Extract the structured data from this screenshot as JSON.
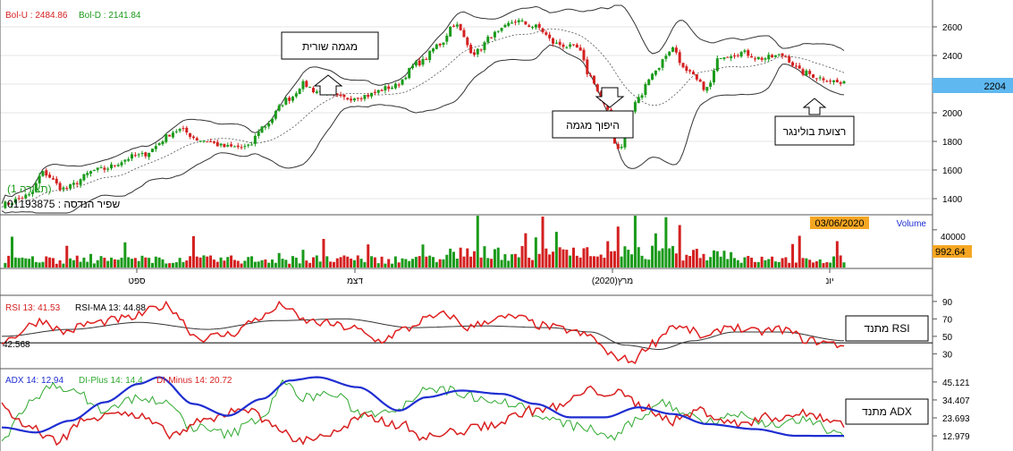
{
  "header": {
    "bol_u": "Bol-U : 2484.86",
    "bol_d": "Bol-D : 2141.84",
    "view_label": "(תצורה 1)",
    "security_line": "שפיר הנדסה : 01193875",
    "price_badge": "2204"
  },
  "annotations": {
    "uptrend": "מגמה שורית",
    "reversal": "היפוך מגמה",
    "squeeze": "רצועת בולינגר",
    "rsi_osc": "מתנד RSI",
    "adx_osc": "מתנד ADX"
  },
  "volume_panel": {
    "date_badge": "03/06/2020",
    "label": "Volume",
    "tick": "40000",
    "value_badge": "992.64"
  },
  "xaxis": {
    "labels": [
      "ספט",
      "דצמ",
      "מרץ(2020)",
      "יונ"
    ]
  },
  "rsi_panel": {
    "rsi_label": "RSI 13: 41.53",
    "rsi_ma_label": "RSI-MA 13: 44.88",
    "left_value": "42.568",
    "ticks": [
      "90",
      "70",
      "50",
      "30"
    ]
  },
  "adx_panel": {
    "adx_label": "ADX 14: 12.94",
    "di_plus_label": "DI-Plus 14: 14.4",
    "di_minus_label": "DI-Minus 14: 20.72",
    "ticks": [
      "45.121",
      "34.407",
      "23.693",
      "12.979"
    ]
  },
  "colors": {
    "up": "#1a9a1a",
    "down": "#d42020",
    "badge_orange": "#f5a623",
    "badge_blue": "#60b8f0",
    "adx": "#1f2ed1",
    "di_plus": "#2ea82e",
    "di_minus": "#d82020"
  },
  "chart_data": {
    "type": "candlestick",
    "ylim": [
      1300,
      2750
    ],
    "yticks": [
      1400,
      1600,
      1800,
      2000,
      2200,
      2400,
      2600
    ],
    "last_close": 2204,
    "bollinger": {
      "upper": 2484.86,
      "lower": 2141.84
    },
    "x_month_labels": [
      "ספט",
      "דצמ",
      "מרץ(2020)",
      "יונ"
    ],
    "price_keypoints": [
      [
        0,
        1360
      ],
      [
        8,
        1420
      ],
      [
        12,
        1580
      ],
      [
        18,
        1470
      ],
      [
        28,
        1600
      ],
      [
        40,
        1700
      ],
      [
        52,
        1880
      ],
      [
        58,
        1810
      ],
      [
        66,
        1760
      ],
      [
        72,
        1760
      ],
      [
        76,
        1900
      ],
      [
        84,
        2100
      ],
      [
        88,
        2200
      ],
      [
        92,
        2150
      ],
      [
        100,
        2100
      ],
      [
        106,
        2120
      ],
      [
        114,
        2180
      ],
      [
        122,
        2350
      ],
      [
        128,
        2480
      ],
      [
        132,
        2620
      ],
      [
        138,
        2420
      ],
      [
        144,
        2550
      ],
      [
        150,
        2640
      ],
      [
        156,
        2600
      ],
      [
        162,
        2480
      ],
      [
        168,
        2450
      ],
      [
        172,
        2250
      ],
      [
        176,
        2050
      ],
      [
        180,
        1750
      ],
      [
        186,
        2100
      ],
      [
        190,
        2280
      ],
      [
        196,
        2450
      ],
      [
        200,
        2280
      ],
      [
        206,
        2170
      ],
      [
        210,
        2400
      ],
      [
        216,
        2420
      ],
      [
        222,
        2380
      ],
      [
        228,
        2400
      ],
      [
        234,
        2280
      ],
      [
        240,
        2240
      ],
      [
        246,
        2200
      ]
    ],
    "volume_ylim": [
      0,
      55000
    ],
    "rsi_ylim": [
      15,
      95
    ],
    "rsi_keypoints": [
      [
        0,
        45
      ],
      [
        12,
        68
      ],
      [
        18,
        55
      ],
      [
        26,
        65
      ],
      [
        36,
        70
      ],
      [
        48,
        85
      ],
      [
        58,
        48
      ],
      [
        66,
        52
      ],
      [
        76,
        72
      ],
      [
        82,
        86
      ],
      [
        88,
        68
      ],
      [
        94,
        65
      ],
      [
        102,
        60
      ],
      [
        110,
        45
      ],
      [
        118,
        58
      ],
      [
        124,
        70
      ],
      [
        130,
        75
      ],
      [
        136,
        60
      ],
      [
        144,
        70
      ],
      [
        150,
        72
      ],
      [
        158,
        62
      ],
      [
        164,
        58
      ],
      [
        172,
        50
      ],
      [
        178,
        28
      ],
      [
        184,
        22
      ],
      [
        190,
        42
      ],
      [
        196,
        62
      ],
      [
        200,
        58
      ],
      [
        206,
        48
      ],
      [
        212,
        62
      ],
      [
        220,
        55
      ],
      [
        228,
        58
      ],
      [
        236,
        45
      ],
      [
        246,
        40
      ]
    ],
    "rsi_ma_keypoints": [
      [
        0,
        50
      ],
      [
        20,
        58
      ],
      [
        40,
        66
      ],
      [
        60,
        58
      ],
      [
        80,
        68
      ],
      [
        100,
        70
      ],
      [
        120,
        60
      ],
      [
        140,
        62
      ],
      [
        160,
        60
      ],
      [
        172,
        55
      ],
      [
        182,
        40
      ],
      [
        192,
        35
      ],
      [
        202,
        45
      ],
      [
        214,
        55
      ],
      [
        228,
        55
      ],
      [
        246,
        45
      ]
    ],
    "adx_ylim": [
      5,
      52
    ],
    "adx_keypoints": [
      [
        0,
        18
      ],
      [
        10,
        15
      ],
      [
        20,
        22
      ],
      [
        30,
        33
      ],
      [
        40,
        44
      ],
      [
        46,
        48
      ],
      [
        56,
        32
      ],
      [
        66,
        25
      ],
      [
        76,
        35
      ],
      [
        84,
        46
      ],
      [
        92,
        48
      ],
      [
        104,
        42
      ],
      [
        116,
        28
      ],
      [
        124,
        36
      ],
      [
        134,
        40
      ],
      [
        146,
        38
      ],
      [
        156,
        32
      ],
      [
        166,
        24
      ],
      [
        176,
        24
      ],
      [
        186,
        30
      ],
      [
        196,
        26
      ],
      [
        206,
        20
      ],
      [
        220,
        17
      ],
      [
        232,
        13
      ],
      [
        246,
        12.94
      ]
    ],
    "di_plus_keypoints": [
      [
        0,
        12
      ],
      [
        8,
        32
      ],
      [
        16,
        44
      ],
      [
        22,
        38
      ],
      [
        30,
        28
      ],
      [
        40,
        36
      ],
      [
        48,
        32
      ],
      [
        56,
        18
      ],
      [
        66,
        14
      ],
      [
        76,
        24
      ],
      [
        82,
        44
      ],
      [
        88,
        36
      ],
      [
        96,
        38
      ],
      [
        106,
        26
      ],
      [
        116,
        30
      ],
      [
        124,
        42
      ],
      [
        130,
        40
      ],
      [
        140,
        36
      ],
      [
        150,
        32
      ],
      [
        160,
        22
      ],
      [
        170,
        18
      ],
      [
        178,
        12
      ],
      [
        186,
        22
      ],
      [
        192,
        34
      ],
      [
        198,
        28
      ],
      [
        206,
        22
      ],
      [
        214,
        26
      ],
      [
        224,
        20
      ],
      [
        234,
        22
      ],
      [
        246,
        14.4
      ]
    ],
    "di_minus_keypoints": [
      [
        0,
        30
      ],
      [
        8,
        18
      ],
      [
        16,
        10
      ],
      [
        24,
        22
      ],
      [
        32,
        28
      ],
      [
        40,
        24
      ],
      [
        50,
        14
      ],
      [
        60,
        22
      ],
      [
        70,
        30
      ],
      [
        78,
        22
      ],
      [
        86,
        10
      ],
      [
        96,
        14
      ],
      [
        106,
        24
      ],
      [
        116,
        20
      ],
      [
        124,
        12
      ],
      [
        134,
        16
      ],
      [
        144,
        20
      ],
      [
        154,
        28
      ],
      [
        162,
        30
      ],
      [
        172,
        40
      ],
      [
        180,
        38
      ],
      [
        188,
        30
      ],
      [
        196,
        22
      ],
      [
        204,
        28
      ],
      [
        214,
        20
      ],
      [
        224,
        24
      ],
      [
        236,
        26
      ],
      [
        246,
        20.72
      ]
    ]
  }
}
